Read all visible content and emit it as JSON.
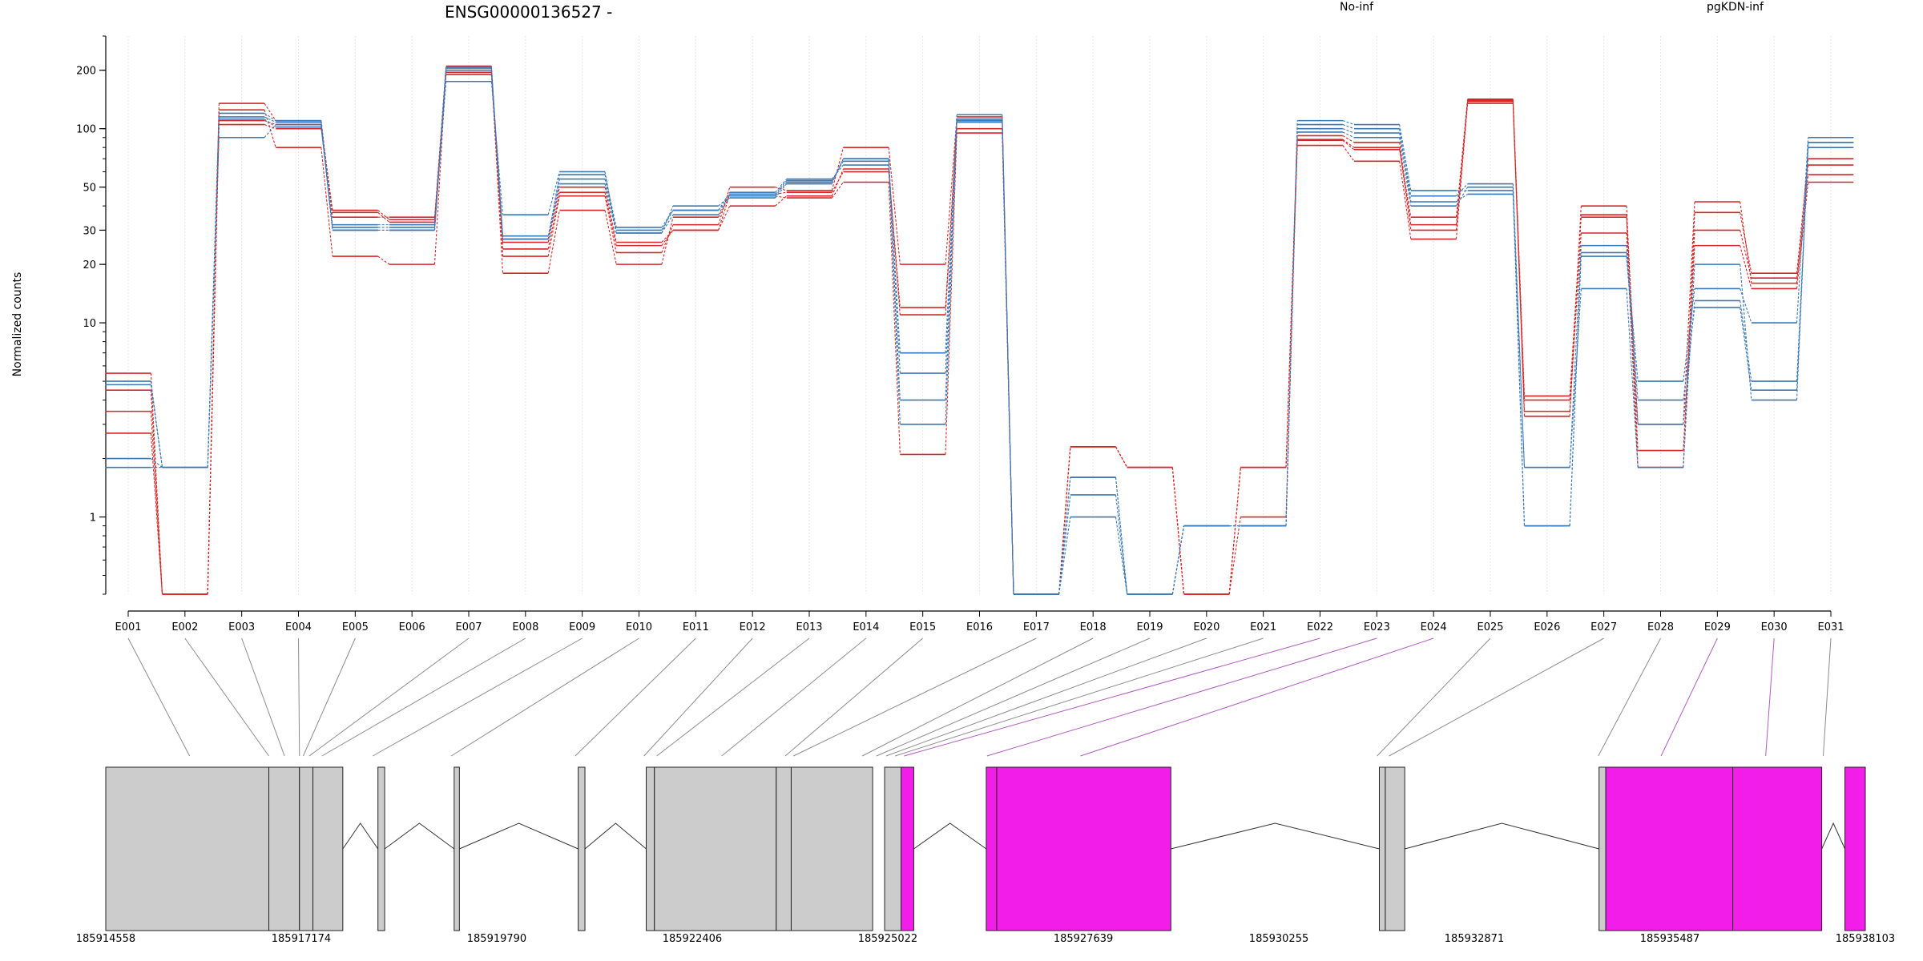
{
  "chart_data": {
    "type": "line",
    "title": "ENSG00000136527 -",
    "ylabel": "Normalized counts",
    "xlabel": "",
    "y_scale": "log",
    "ylim": [
      0.4,
      300
    ],
    "y_ticks": [
      1,
      10,
      20,
      30,
      50,
      100,
      200
    ],
    "grid": "vertical",
    "legend_placement": "top-right",
    "categories": [
      "E001",
      "E002",
      "E003",
      "E004",
      "E005",
      "E006",
      "E007",
      "E008",
      "E009",
      "E010",
      "E011",
      "E012",
      "E013",
      "E014",
      "E015",
      "E016",
      "E017",
      "E018",
      "E019",
      "E020",
      "E021",
      "E022",
      "E023",
      "E024",
      "E025",
      "E026",
      "E027",
      "E028",
      "E029",
      "E030",
      "E031"
    ],
    "groups": [
      {
        "name": "No-inf",
        "color": "#d62728"
      },
      {
        "name": "pgKDN-inf",
        "color": "#3a78b5"
      }
    ],
    "series": [
      {
        "group": "No-inf",
        "values": [
          5.5,
          0.4,
          105,
          100,
          37,
          33,
          195,
          26,
          50,
          26,
          30,
          40,
          45,
          62,
          11,
          110,
          0.4,
          2.3,
          1.8,
          0.4,
          1.8,
          92,
          85,
          32,
          140,
          4,
          36,
          3,
          42,
          16,
          65
        ]
      },
      {
        "group": "No-inf",
        "values": [
          4.5,
          0.4,
          125,
          80,
          22,
          20,
          200,
          18,
          38,
          20,
          35,
          45,
          44,
          53,
          2.1,
          95,
          0.4,
          2.3,
          1.8,
          0.4,
          1.8,
          82,
          68,
          27,
          138,
          3.3,
          40,
          2.2,
          25,
          15,
          53
        ]
      },
      {
        "group": "No-inf",
        "values": [
          3.5,
          0.4,
          135,
          110,
          35,
          35,
          210,
          22,
          45,
          23,
          32,
          50,
          48,
          80,
          20,
          115,
          0.4,
          2.3,
          1.8,
          0.4,
          1.8,
          87,
          78,
          35,
          142,
          4.2,
          35,
          1.8,
          37,
          18,
          70
        ]
      },
      {
        "group": "No-inf",
        "values": [
          2.7,
          0.4,
          110,
          105,
          38,
          34,
          190,
          24,
          47,
          25,
          30,
          46,
          47,
          60,
          12,
          100,
          0.4,
          2.3,
          1.8,
          0.4,
          1.0,
          88,
          80,
          30,
          135,
          3.5,
          29,
          1.8,
          30,
          17,
          58
        ]
      },
      {
        "group": "pgKDN-inf",
        "values": [
          5.0,
          1.8,
          90,
          105,
          31,
          31,
          175,
          36,
          60,
          29,
          40,
          45,
          53,
          70,
          7,
          118,
          0.4,
          1.6,
          0.4,
          0.9,
          0.9,
          110,
          105,
          48,
          48,
          0.9,
          23,
          5,
          15,
          10,
          90
        ]
      },
      {
        "group": "pgKDN-inf",
        "values": [
          2.0,
          1.8,
          115,
          108,
          30,
          30,
          205,
          28,
          55,
          30,
          38,
          47,
          55,
          65,
          4,
          112,
          0.4,
          1.6,
          0.4,
          0.9,
          0.9,
          100,
          95,
          45,
          52,
          1.8,
          25,
          3,
          13,
          5,
          80
        ]
      },
      {
        "group": "pgKDN-inf",
        "values": [
          1.8,
          1.8,
          120,
          110,
          32,
          32,
          208,
          27,
          52,
          29,
          36,
          46,
          54,
          68,
          3,
          108,
          0.4,
          1.0,
          0.4,
          0.9,
          0.9,
          105,
          100,
          42,
          46,
          1.8,
          15,
          1.8,
          20,
          4,
          85
        ]
      },
      {
        "group": "pgKDN-inf",
        "values": [
          4.8,
          1.8,
          112,
          102,
          30,
          30,
          200,
          27,
          58,
          31,
          38,
          44,
          52,
          70,
          5.5,
          110,
          0.4,
          1.3,
          0.4,
          0.9,
          0.9,
          96,
          90,
          40,
          50,
          0.9,
          22,
          4,
          12,
          4.5,
          85
        ]
      }
    ],
    "genome": {
      "range": [
        185914558,
        185938103
      ],
      "ticks": [
        185914558,
        185917174,
        185919790,
        185922406,
        185925022,
        185927639,
        185930255,
        185932871,
        185935487,
        185938103
      ],
      "segments": [
        {
          "start": 185914558,
          "end": 185916740,
          "highlight": false
        },
        {
          "start": 185916740,
          "end": 185917150,
          "highlight": false
        },
        {
          "start": 185917150,
          "end": 185917330,
          "highlight": false
        },
        {
          "start": 185917330,
          "end": 185917730,
          "highlight": false
        },
        {
          "start": 185918200,
          "end": 185918290,
          "highlight": false
        },
        {
          "start": 185919220,
          "end": 185919290,
          "highlight": false
        },
        {
          "start": 185920880,
          "end": 185920970,
          "highlight": false
        },
        {
          "start": 185921790,
          "end": 185921900,
          "highlight": false
        },
        {
          "start": 185921900,
          "end": 185923530,
          "highlight": false
        },
        {
          "start": 185923530,
          "end": 185923730,
          "highlight": false
        },
        {
          "start": 185923730,
          "end": 185924820,
          "highlight": false
        },
        {
          "start": 185924980,
          "end": 185925200,
          "highlight": false
        },
        {
          "start": 185925200,
          "end": 185925370,
          "highlight": true
        },
        {
          "start": 185926340,
          "end": 185926480,
          "highlight": true
        },
        {
          "start": 185926480,
          "end": 185928810,
          "highlight": true
        },
        {
          "start": 185931600,
          "end": 185931680,
          "highlight": false
        },
        {
          "start": 185931680,
          "end": 185931940,
          "highlight": false
        },
        {
          "start": 185934540,
          "end": 185934630,
          "highlight": false
        },
        {
          "start": 185934630,
          "end": 185936330,
          "highlight": true
        },
        {
          "start": 185936330,
          "end": 185937520,
          "highlight": true
        },
        {
          "start": 185937830,
          "end": 185938103,
          "highlight": true
        }
      ],
      "introns": [
        [
          185917730,
          185918200
        ],
        [
          185918290,
          185919220
        ],
        [
          185919290,
          185920880
        ],
        [
          185920970,
          185921790
        ],
        [
          185925370,
          185926340
        ],
        [
          185928810,
          185931600
        ],
        [
          185931940,
          185934540
        ],
        [
          185937520,
          185937830
        ]
      ],
      "exon_targets": [
        185915680,
        185916740,
        185916950,
        185917150,
        185917200,
        185917280,
        185917450,
        185918130,
        185919180,
        185920840,
        185921760,
        185921930,
        185922800,
        185923650,
        185923760,
        185924680,
        185924870,
        185925000,
        185925120,
        185925240,
        185926350,
        185927600,
        185931570,
        185931730,
        185934530,
        185935370,
        185936770,
        185937540
      ]
    }
  }
}
